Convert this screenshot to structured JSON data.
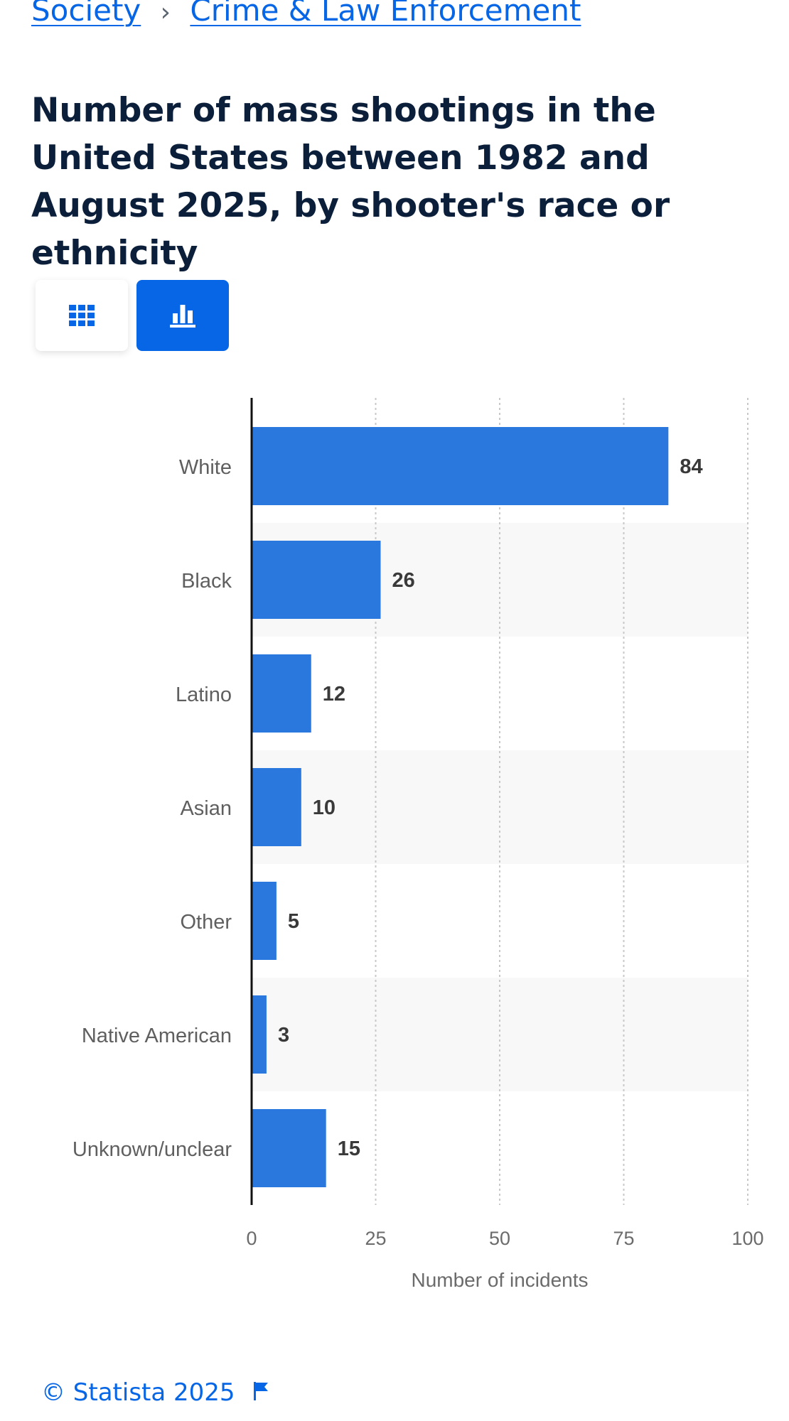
{
  "breadcrumb": {
    "items": [
      "Society",
      "Crime & Law Enforcement"
    ],
    "separator": "›"
  },
  "title": "Number of mass shootings in the United States between 1982 and August 2025, by shooter's race or ethnicity",
  "view_toggle": {
    "table_icon": "table-grid-icon",
    "chart_icon": "bar-chart-icon",
    "active": "chart"
  },
  "colors": {
    "bar": "#2a77de",
    "accent": "#0666e5",
    "title": "#0b1f3a"
  },
  "chart_data": {
    "type": "bar",
    "orientation": "horizontal",
    "categories": [
      "White",
      "Black",
      "Latino",
      "Asian",
      "Other",
      "Native American",
      "Unknown/unclear"
    ],
    "values": [
      84,
      26,
      12,
      10,
      5,
      3,
      15
    ],
    "xlabel": "Number of incidents",
    "ylabel": "",
    "xlim": [
      0,
      100
    ],
    "ticks": [
      0,
      25,
      50,
      75,
      100
    ],
    "grid": "vertical-dotted",
    "data_labels": true
  },
  "footer": {
    "copyright": "© Statista 2025",
    "flag_icon": "flag-icon"
  }
}
